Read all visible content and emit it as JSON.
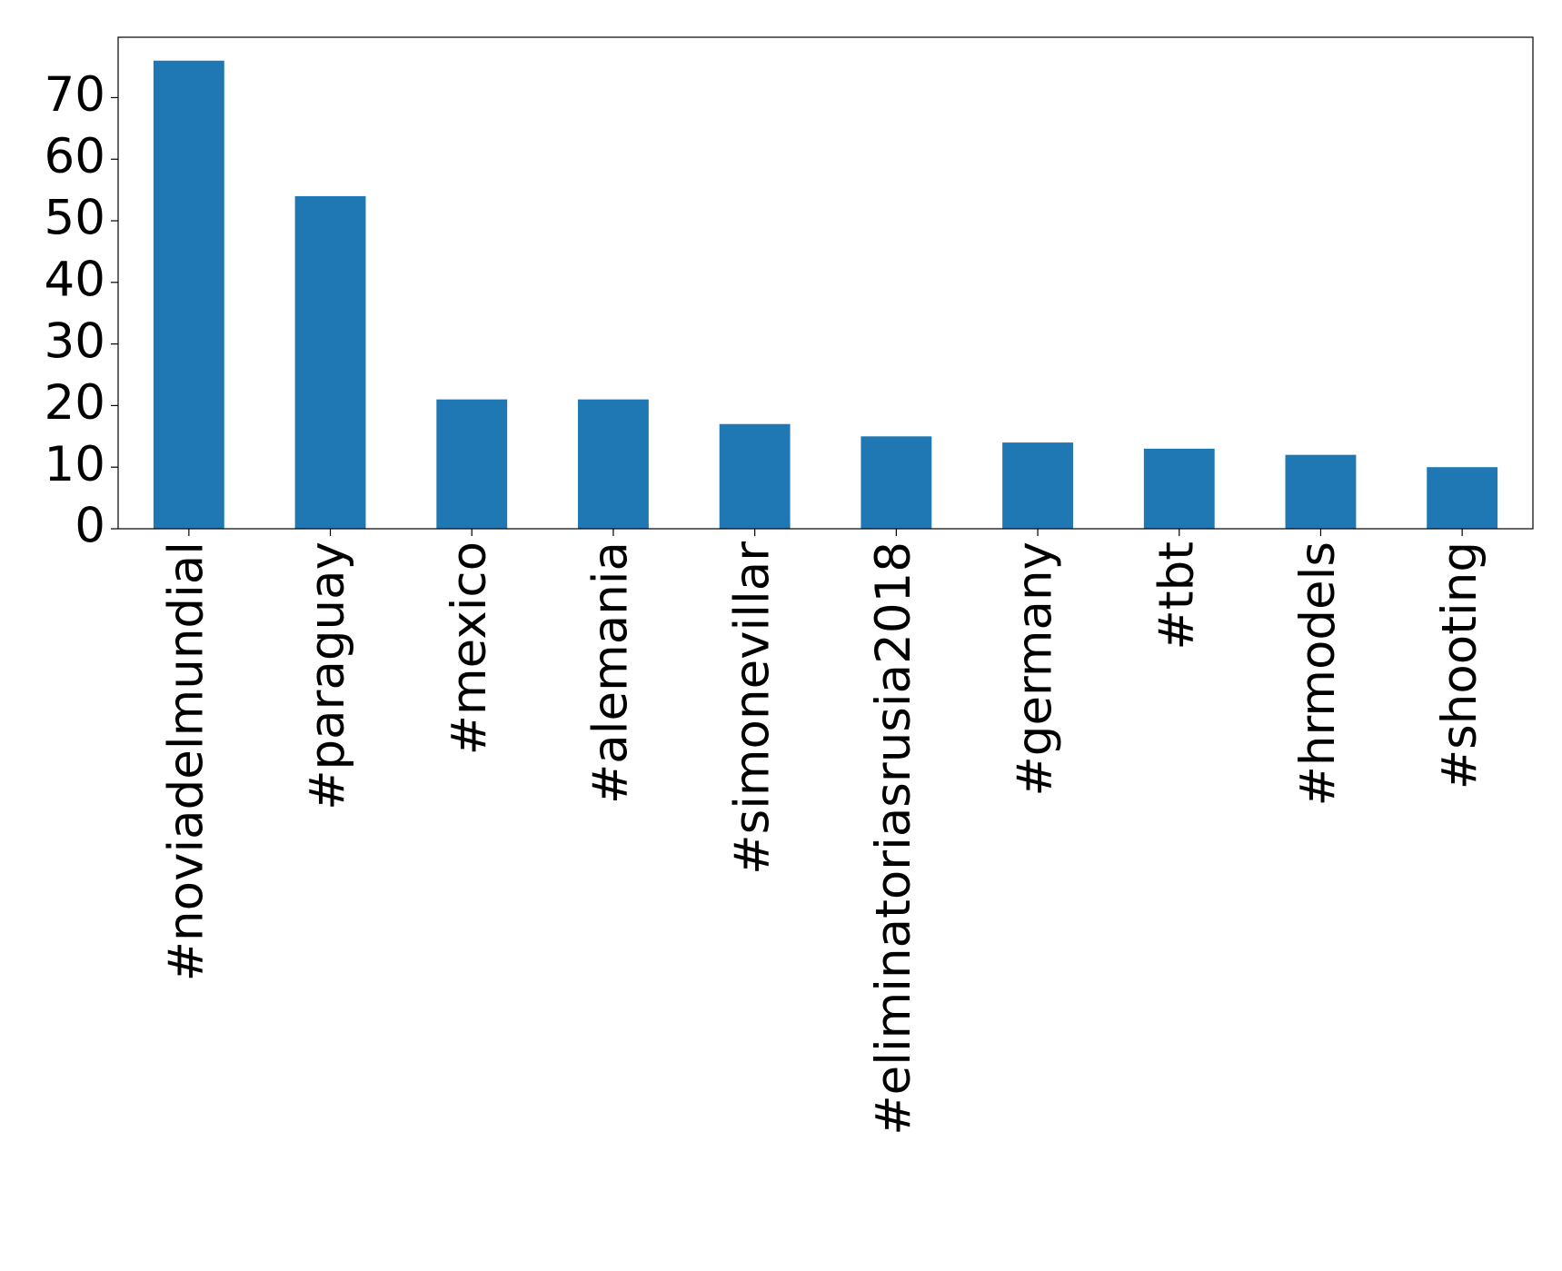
{
  "chart_data": {
    "type": "bar",
    "categories": [
      "#noviadelmundial",
      "#paraguay",
      "#mexico",
      "#alemania",
      "#simonevillar",
      "#eliminatoriasrusia2018",
      "#germany",
      "#tbt",
      "#hrmodels",
      "#shooting"
    ],
    "values": [
      76,
      54,
      21,
      21,
      17,
      15,
      14,
      13,
      12,
      10
    ],
    "color": "#1f77b4",
    "ylim": [
      0,
      79.8
    ],
    "yticks": [
      0,
      10,
      20,
      30,
      40,
      50,
      60,
      70
    ],
    "grid": false
  }
}
